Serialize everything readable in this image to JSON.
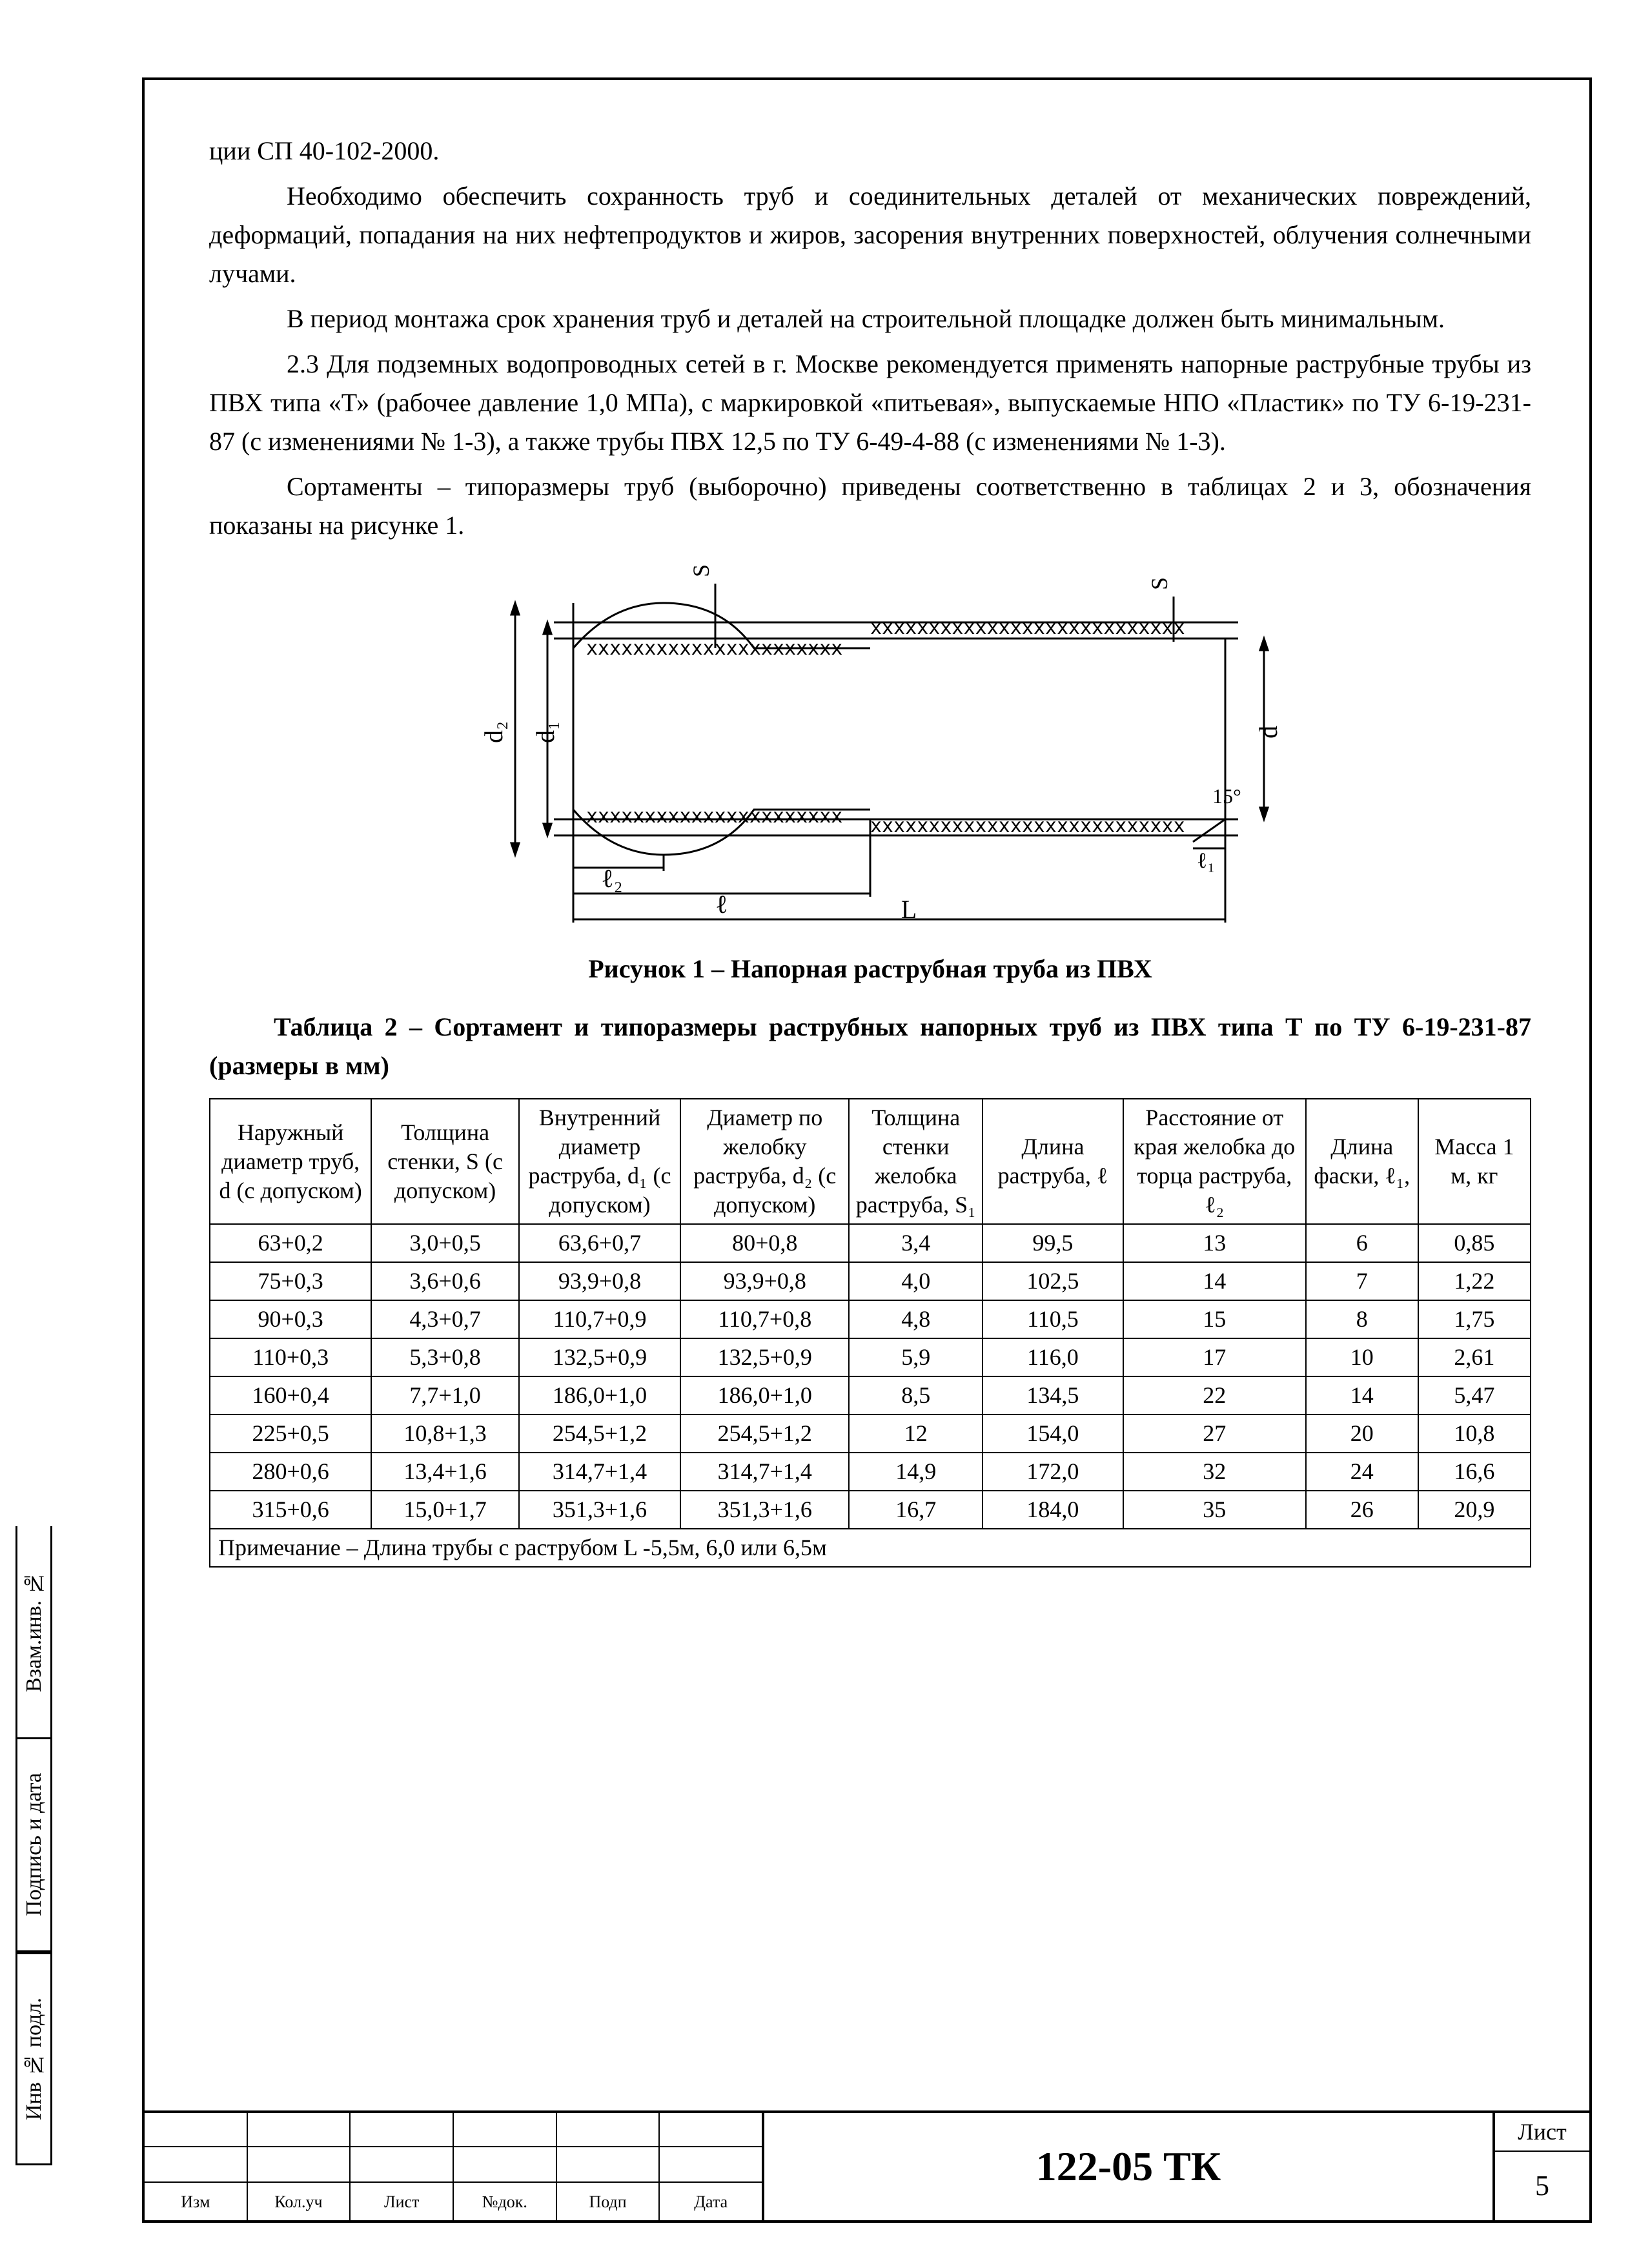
{
  "body_text": {
    "p0": "ции СП 40-102-2000.",
    "p1": "Необходимо обеспечить сохранность труб и соединительных деталей от механических повреждений, деформаций, попадания на них нефтепродуктов и жиров, засорения внутренних поверхностей, облучения солнечными лучами.",
    "p2": "В период монтажа срок хранения труб и деталей на строительной площадке должен быть минимальным.",
    "p3": "2.3 Для подземных водопроводных сетей в г. Москве рекомендуется применять напорные раструбные трубы из ПВХ типа «Т» (рабочее давление 1,0 МПа), с маркировкой «питьевая», выпускаемые НПО «Пластик» по ТУ 6-19-231-87 (с изменениями № 1-3), а также трубы ПВХ 12,5 по ТУ 6-49-4-88 (с изменениями № 1-3).",
    "p4": "Сортаменты – типоразмеры труб (выборочно) приведены соответственно в таблицах 2 и 3, обозначения показаны на рисунке 1."
  },
  "figure": {
    "caption": "Рисунок 1 – Напорная раструбная труба из ПВХ",
    "labels": {
      "d": "d",
      "d1": "d₁",
      "d2": "d₂",
      "S": "S",
      "S1": "S₁",
      "l": "ℓ",
      "l1": "ℓ₁",
      "l2": "ℓ₂",
      "L": "L",
      "angle": "15°"
    },
    "diagram": {
      "stroke": "#000000",
      "fill": "#ffffff",
      "hatch": "xxxxxxxxxxxxxxxxxx",
      "line_width": 3
    }
  },
  "table2": {
    "caption": "Таблица 2 – Сортамент и типоразмеры раструбных напорных труб из ПВХ типа Т по ТУ 6-19-231-87 (размеры в мм)",
    "columns": [
      "Наружный диаметр труб, d (с допуском)",
      "Толщина стенки, S (с допуском)",
      "Внутренний диаметр раструба, d₁ (с допуском)",
      "Диаметр по желобку раструба, d₂ (с допуском)",
      "Толщина стенки желобка раструба, S₁",
      "Длина раструба, ℓ",
      "Расстояние от края желобка до торца раструба, ℓ₂",
      "Длина фаски, ℓ₁,",
      "Масса 1 м, кг"
    ],
    "col_widths_pct": [
      11.5,
      10.5,
      11.5,
      12,
      9.5,
      10,
      13,
      8,
      8
    ],
    "rows": [
      [
        "63+0,2",
        "3,0+0,5",
        "63,6+0,7",
        "80+0,8",
        "3,4",
        "99,5",
        "13",
        "6",
        "0,85"
      ],
      [
        "75+0,3",
        "3,6+0,6",
        "93,9+0,8",
        "93,9+0,8",
        "4,0",
        "102,5",
        "14",
        "7",
        "1,22"
      ],
      [
        "90+0,3",
        "4,3+0,7",
        "110,7+0,9",
        "110,7+0,8",
        "4,8",
        "110,5",
        "15",
        "8",
        "1,75"
      ],
      [
        "110+0,3",
        "5,3+0,8",
        "132,5+0,9",
        "132,5+0,9",
        "5,9",
        "116,0",
        "17",
        "10",
        "2,61"
      ],
      [
        "160+0,4",
        "7,7+1,0",
        "186,0+1,0",
        "186,0+1,0",
        "8,5",
        "134,5",
        "22",
        "14",
        "5,47"
      ],
      [
        "225+0,5",
        "10,8+1,3",
        "254,5+1,2",
        "254,5+1,2",
        "12",
        "154,0",
        "27",
        "20",
        "10,8"
      ],
      [
        "280+0,6",
        "13,4+1,6",
        "314,7+1,4",
        "314,7+1,4",
        "14,9",
        "172,0",
        "32",
        "24",
        "16,6"
      ],
      [
        "315+0,6",
        "15,0+1,7",
        "351,3+1,6",
        "351,3+1,6",
        "16,7",
        "184,0",
        "35",
        "26",
        "20,9"
      ]
    ],
    "note": "Примечание – Длина трубы с раструбом L -5,5м, 6,0 или 6,5м",
    "border_color": "#000000",
    "font_size": 36
  },
  "side_labels": {
    "a": "Взам.инв. №",
    "b": "Подпись и дата",
    "c": "Инв № подл."
  },
  "title_block": {
    "doc_number": "122-05 ТК",
    "sheet_label": "Лист",
    "sheet_number": "5",
    "small_cols": [
      "Изм",
      "Кол.уч",
      "Лист",
      "№док.",
      "Подп",
      "Дата"
    ]
  },
  "colors": {
    "page_bg": "#ffffff",
    "text": "#000000",
    "border": "#000000"
  }
}
